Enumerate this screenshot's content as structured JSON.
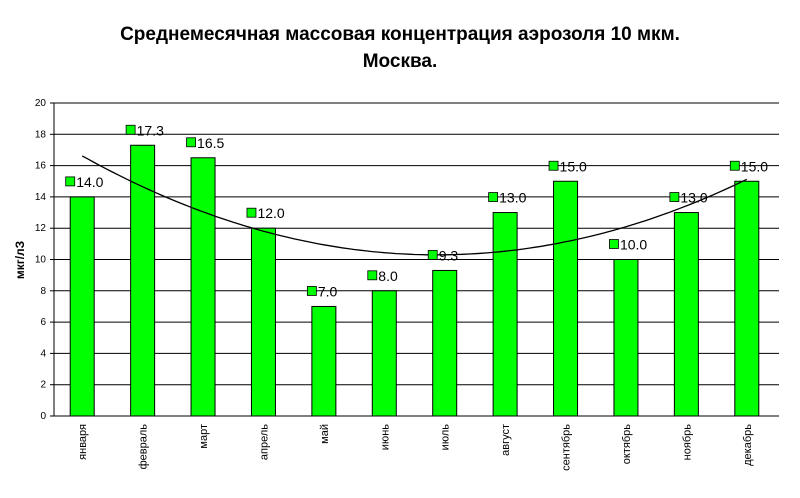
{
  "chart_data": {
    "type": "bar",
    "title": "Среднемесячная массовая концентрация аэрозоля 10 мкм.",
    "subtitle": "Москва.",
    "ylabel": "мкг/лЗ",
    "xlabel": "",
    "ylim": [
      0,
      20
    ],
    "yticks": [
      0,
      2,
      4,
      6,
      8,
      10,
      12,
      14,
      16,
      18,
      20
    ],
    "grid": true,
    "legend": "none",
    "categories": [
      "января",
      "февраль",
      "март",
      "апрель",
      "май",
      "июнь",
      "июль",
      "август",
      "сентябрь",
      "октябрь",
      "ноябрь",
      "декабрь"
    ],
    "values": [
      14.0,
      17.3,
      16.5,
      12.0,
      7.0,
      8.0,
      9.3,
      13.0,
      15.0,
      10.0,
      13.0,
      15.0
    ],
    "data_labels": [
      "14.0",
      "17.3",
      "16.5",
      "12.0",
      "7.0",
      "8.0",
      "9.3",
      "13.0",
      "15.0",
      "10.0",
      "13.0",
      "15.0"
    ],
    "trendline": {
      "type": "polynomial"
    },
    "colors": {
      "bar": "#00ff00",
      "bar_stroke": "#000000",
      "grid": "#000000",
      "trend": "#000000"
    }
  }
}
